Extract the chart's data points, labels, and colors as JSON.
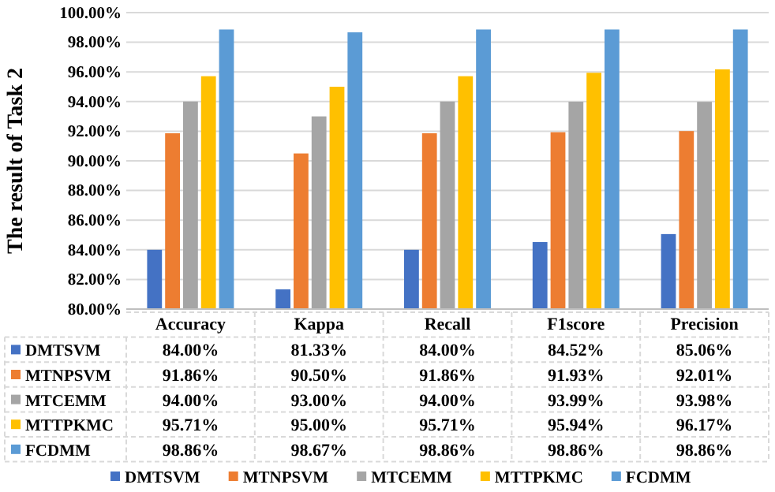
{
  "chart_data": {
    "type": "bar",
    "ylabel": "The result of Task 2",
    "categories": [
      "Accuracy",
      "Kappa",
      "Recall",
      "F1score",
      "Precision"
    ],
    "series": [
      {
        "name": "DMTSVM",
        "color": "#4472c4",
        "values": [
          84.0,
          81.33,
          84.0,
          84.52,
          85.06
        ],
        "value_labels": [
          "84.00%",
          "81.33%",
          "84.00%",
          "84.52%",
          "85.06%"
        ]
      },
      {
        "name": "MTNPSVM",
        "color": "#ed7d31",
        "values": [
          91.86,
          90.5,
          91.86,
          91.93,
          92.01
        ],
        "value_labels": [
          "91.86%",
          "90.50%",
          "91.86%",
          "91.93%",
          "92.01%"
        ]
      },
      {
        "name": "MTCEMM",
        "color": "#a5a5a5",
        "values": [
          94.0,
          93.0,
          94.0,
          93.99,
          93.98
        ],
        "value_labels": [
          "94.00%",
          "93.00%",
          "94.00%",
          "93.99%",
          "93.98%"
        ]
      },
      {
        "name": "MTTPKMC",
        "color": "#ffc000",
        "values": [
          95.71,
          95.0,
          95.71,
          95.94,
          96.17
        ],
        "value_labels": [
          "95.71%",
          "95.00%",
          "95.71%",
          "95.94%",
          "96.17%"
        ]
      },
      {
        "name": "FCDMM",
        "color": "#5b9bd5",
        "values": [
          98.86,
          98.67,
          98.86,
          98.86,
          98.86
        ],
        "value_labels": [
          "98.86%",
          "98.67%",
          "98.86%",
          "98.86%",
          "98.86%"
        ]
      }
    ],
    "ylim": [
      80,
      100
    ],
    "yticks": [
      {
        "value": 80,
        "label": "80.00%"
      },
      {
        "value": 82,
        "label": "82.00%"
      },
      {
        "value": 84,
        "label": "84.00%"
      },
      {
        "value": 86,
        "label": "86.00%"
      },
      {
        "value": 88,
        "label": "88.00%"
      },
      {
        "value": 90,
        "label": "90.00%"
      },
      {
        "value": 92,
        "label": "92.00%"
      },
      {
        "value": 94,
        "label": "94.00%"
      },
      {
        "value": 96,
        "label": "96.00%"
      },
      {
        "value": 98,
        "label": "98.00%"
      },
      {
        "value": 100,
        "label": "100.00%"
      }
    ],
    "grid": "y",
    "legend": "bottom"
  }
}
